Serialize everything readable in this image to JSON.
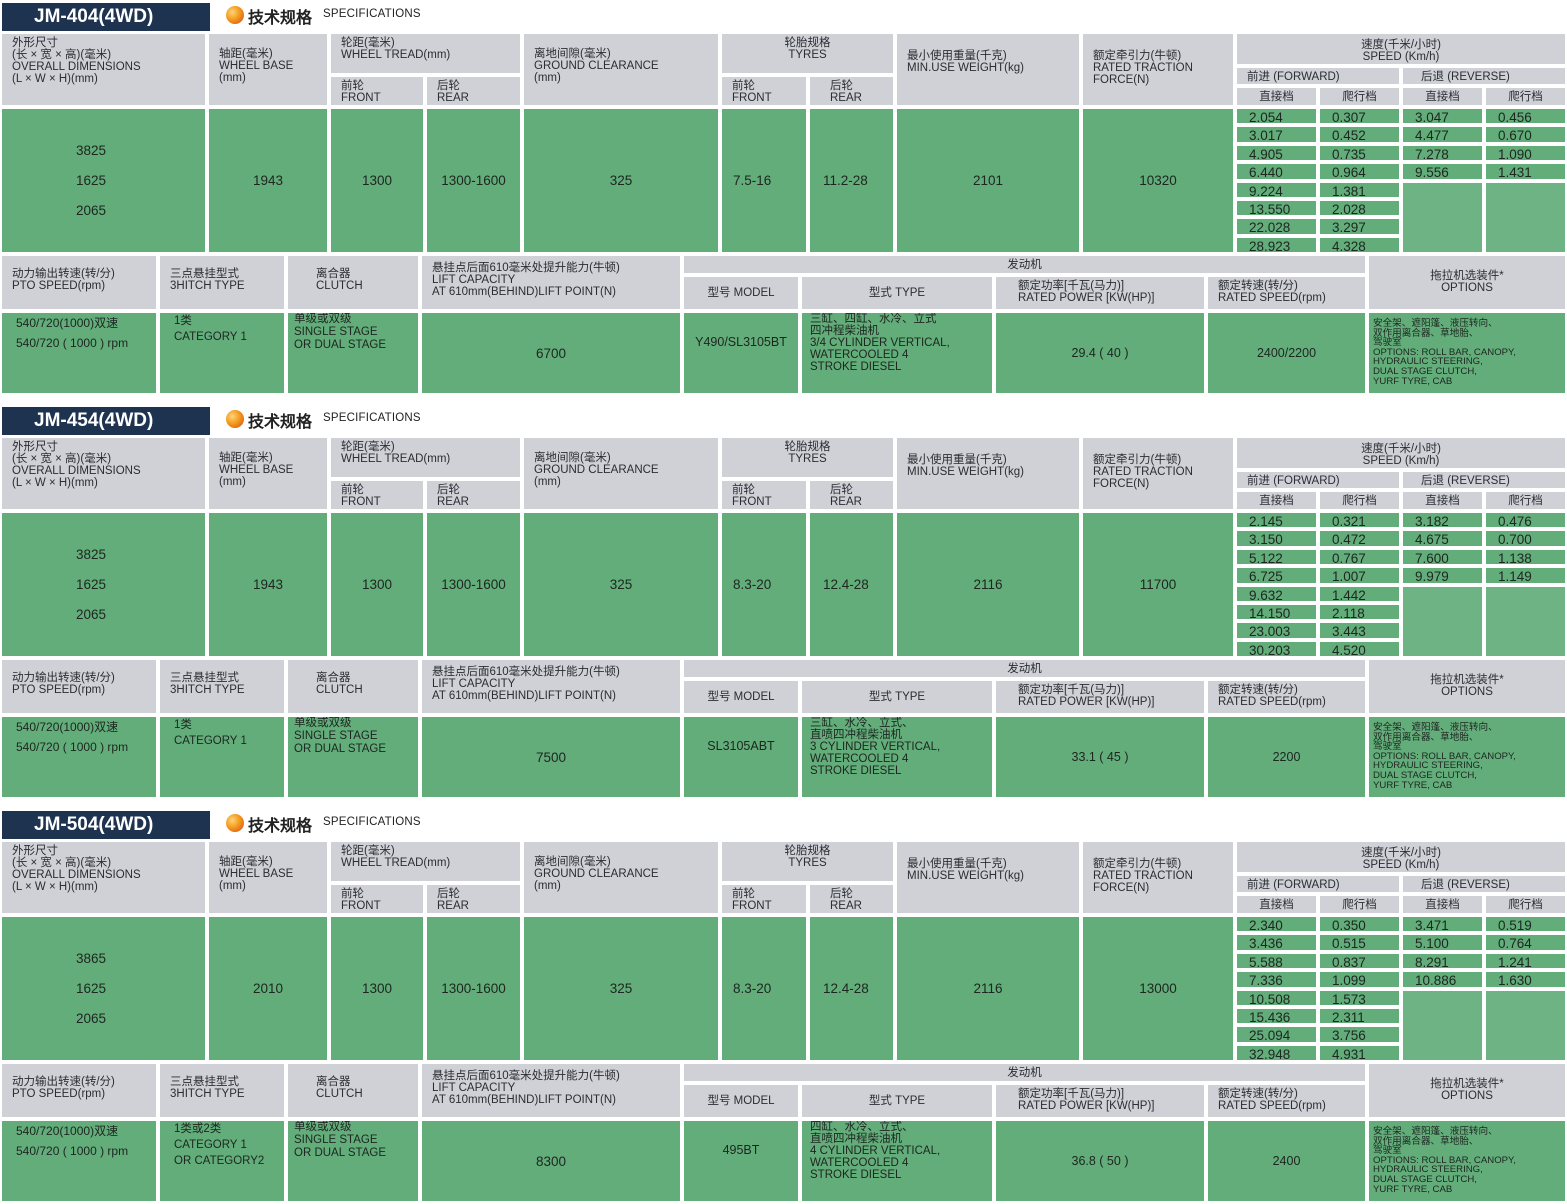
{
  "spec_cn": "技术规格",
  "spec_en": "SPECIFICATIONS",
  "headers": {
    "dimensions": [
      "外形尺寸",
      "(长 × 宽 × 高)(毫米)",
      "OVERALL DIMENSIONS",
      "(L × W × H)(mm)"
    ],
    "wheel_base": [
      "轴距(毫米)",
      "WHEEL BASE",
      "(mm)"
    ],
    "wheel_tread": [
      "轮距(毫米)",
      "WHEEL TREAD(mm)"
    ],
    "front_cn": "前轮",
    "front_en": "FRONT",
    "rear_cn": "后轮",
    "rear_en": "REAR",
    "ground_clearance": [
      "离地间隙(毫米)",
      "GROUND CLEARANCE",
      "(mm)"
    ],
    "tyres": [
      "轮胎规格",
      "TYRES"
    ],
    "min_weight": [
      "最小使用重量(千克)",
      "MIN.USE WEIGHT(kg)"
    ],
    "traction": [
      "额定牵引力(牛顿)",
      "RATED TRACTION",
      "FORCE(N)"
    ],
    "speed": [
      "速度(千米/小时)",
      "SPEED (Km/h)"
    ],
    "forward": "前进 (FORWARD)",
    "reverse": "后退 (REVERSE)",
    "direct_gear": "直接档",
    "creep_gear": "爬行档",
    "pto": [
      "动力输出转速(转/分)",
      "PTO SPEED(rpm)"
    ],
    "hitch": [
      "三点悬挂型式",
      "3HITCH TYPE"
    ],
    "clutch": [
      "离合器",
      "CLUTCH"
    ],
    "lift": [
      "悬挂点后面610毫米处提升能力(牛顿)",
      "LIFT CAPACITY",
      "AT 610mm(BEHIND)LIFT POINT(N)"
    ],
    "engine": "发动机",
    "engine_model": "型号 MODEL",
    "engine_type": "型式 TYPE",
    "rated_power": [
      "额定功率[千瓦(马力)]",
      "RATED POWER [KW(HP)]"
    ],
    "rated_speed": [
      "额定转速(转/分)",
      "RATED SPEED(rpm)"
    ],
    "options": [
      "拖拉机选装件*",
      "OPTIONS"
    ]
  },
  "models": [
    {
      "name": "JM-404(4WD)",
      "dims": [
        "3825",
        "1625",
        "2065"
      ],
      "wheel_base": "1943",
      "tread_front": "1300",
      "tread_rear": "1300-1600",
      "ground_clearance": "325",
      "tyre_front": "7.5-16",
      "tyre_rear": "11.2-28",
      "min_weight": "2101",
      "traction": "10320",
      "fwd_direct": [
        "2.054",
        "3.017",
        "4.905",
        "6.440",
        "9.224",
        "13.550",
        "22.028",
        "28.923"
      ],
      "fwd_creep": [
        "0.307",
        "0.452",
        "0.735",
        "0.964",
        "1.381",
        "2.028",
        "3.297",
        "4.328"
      ],
      "rev_direct": [
        "3.047",
        "4.477",
        "7.278",
        "9.556"
      ],
      "rev_creep": [
        "0.456",
        "0.670",
        "1.090",
        "1.431"
      ],
      "pto": [
        "540/720(1000)双速",
        "540/720 ( 1000 ) rpm"
      ],
      "hitch": [
        "1类",
        "CATEGORY 1"
      ],
      "clutch": [
        "单级或双级",
        "SINGLE STAGE",
        "OR DUAL STAGE"
      ],
      "lift": "6700",
      "engine_model": "Y490/SL3105BT",
      "engine_type": [
        "三缸、四缸、水冷、立式",
        "四冲程柴油机",
        "3/4  CYLINDER VERTICAL,",
        "WATERCOOLED 4",
        "STROKE DIESEL"
      ],
      "rated_power": "29.4 ( 40 )",
      "rated_speed": "2400/2200",
      "options": [
        "安全架、遮阳篷、液压转向、",
        "双作用离合器、草地胎、",
        "驾驶室",
        "OPTIONS:  ROLL BAR, CANOPY,",
        "HYDRAULIC STEERING,",
        "DUAL STAGE CLUTCH,",
        "YURF TYRE, CAB"
      ]
    },
    {
      "name": "JM-454(4WD)",
      "dims": [
        "3825",
        "1625",
        "2065"
      ],
      "wheel_base": "1943",
      "tread_front": "1300",
      "tread_rear": "1300-1600",
      "ground_clearance": "325",
      "tyre_front": "8.3-20",
      "tyre_rear": "12.4-28",
      "min_weight": "2116",
      "traction": "11700",
      "fwd_direct": [
        "2.145",
        "3.150",
        "5.122",
        "6.725",
        "9.632",
        "14.150",
        "23.003",
        "30.203"
      ],
      "fwd_creep": [
        "0.321",
        "0.472",
        "0.767",
        "1.007",
        "1.442",
        "2.118",
        "3.443",
        "4.520"
      ],
      "rev_direct": [
        "3.182",
        "4.675",
        "7.600",
        "9.979"
      ],
      "rev_creep": [
        "0.476",
        "0.700",
        "1.138",
        "1.149"
      ],
      "pto": [
        "540/720(1000)双速",
        "540/720 ( 1000 ) rpm"
      ],
      "hitch": [
        "1类",
        "CATEGORY 1"
      ],
      "clutch": [
        "单级或双级",
        "SINGLE STAGE",
        "OR DUAL STAGE"
      ],
      "lift": "7500",
      "engine_model": "SL3105ABT",
      "engine_type": [
        "三缸、水冷、立式、",
        "直喷四冲程柴油机",
        "3  CYLINDER VERTICAL,",
        "WATERCOOLED 4",
        "STROKE DIESEL"
      ],
      "rated_power": "33.1 ( 45 )",
      "rated_speed": "2200",
      "options": [
        "安全架、遮阳篷、液压转向、",
        "双作用离合器、草地胎、",
        "驾驶室",
        "OPTIONS:  ROLL BAR, CANOPY,",
        "HYDRAULIC STEERING,",
        "DUAL STAGE CLUTCH,",
        "YURF TYRE, CAB"
      ]
    },
    {
      "name": "JM-504(4WD)",
      "dims": [
        "3865",
        "1625",
        "2065"
      ],
      "wheel_base": "2010",
      "tread_front": "1300",
      "tread_rear": "1300-1600",
      "ground_clearance": "325",
      "tyre_front": "8.3-20",
      "tyre_rear": "12.4-28",
      "min_weight": "2116",
      "traction": "13000",
      "fwd_direct": [
        "2.340",
        "3.436",
        "5.588",
        "7.336",
        "10.508",
        "15.436",
        "25.094",
        "32.948"
      ],
      "fwd_creep": [
        "0.350",
        "0.515",
        "0.837",
        "1.099",
        "1.573",
        "2.311",
        "3.756",
        "4.931"
      ],
      "rev_direct": [
        "3.471",
        "5.100",
        "8.291",
        "10.886"
      ],
      "rev_creep": [
        "0.519",
        "0.764",
        "1.241",
        "1.630"
      ],
      "pto": [
        "540/720(1000)双速",
        "540/720 ( 1000 ) rpm"
      ],
      "hitch": [
        "1类或2类",
        "CATEGORY 1",
        "OR CATEGORY2"
      ],
      "clutch": [
        "单级或双级",
        "SINGLE STAGE",
        "OR DUAL STAGE"
      ],
      "lift": "8300",
      "engine_model": "495BT",
      "engine_type": [
        "四缸、水冷、立式、",
        "直喷四冲程柴油机",
        "4 CYLINDER VERTICAL,",
        "WATERCOOLED 4",
        "STROKE DIESEL"
      ],
      "rated_power": "36.8 ( 50 )",
      "rated_speed": "2400",
      "options": [
        "安全架、遮阳篷、液压转向、",
        "双作用离合器、草地胎、",
        "驾驶室",
        "OPTIONS:  ROLL BAR, CANOPY,",
        "HYDRAULIC STEERING,",
        "DUAL STAGE CLUTCH,",
        "YURF TYRE, CAB"
      ]
    }
  ]
}
